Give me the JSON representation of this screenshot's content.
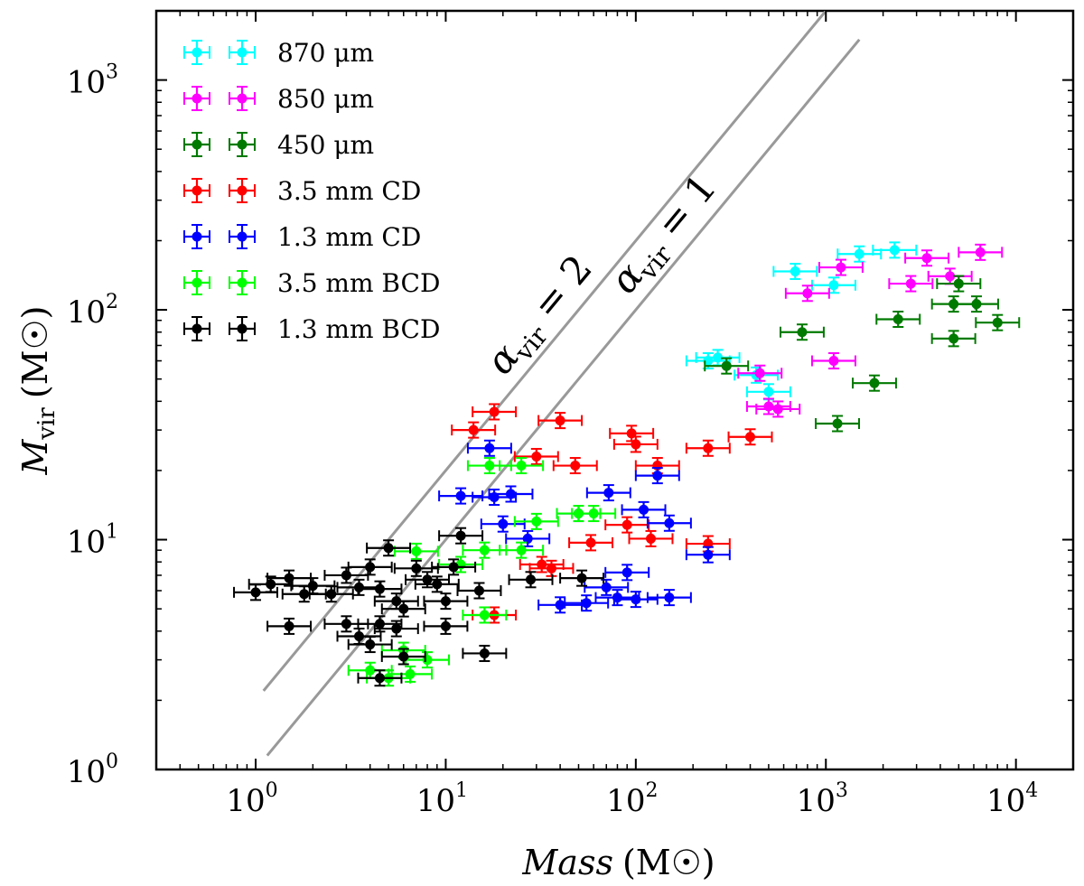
{
  "chart_data": {
    "type": "scatter",
    "log_x": true,
    "log_y": true,
    "xlim": [
      0.3,
      20000
    ],
    "ylim": [
      1,
      2000
    ],
    "xlabel": {
      "italic": "Mass",
      "unit": "(M☉)"
    },
    "ylabel": {
      "italic": "M",
      "sub": "vir",
      "unit": "(M☉)"
    },
    "x_ticks": [
      {
        "base": "10",
        "exp": "0"
      },
      {
        "base": "10",
        "exp": "1"
      },
      {
        "base": "10",
        "exp": "2"
      },
      {
        "base": "10",
        "exp": "3"
      },
      {
        "base": "10",
        "exp": "4"
      }
    ],
    "y_ticks": [
      {
        "base": "10",
        "exp": "0"
      },
      {
        "base": "10",
        "exp": "1"
      },
      {
        "base": "10",
        "exp": "2"
      },
      {
        "base": "10",
        "exp": "3"
      }
    ],
    "reference_lines": [
      {
        "name": "alpha-vir-2",
        "label": "α",
        "sub": "vir",
        "rhs": " = 2",
        "alpha": 2,
        "x": [
          1.1,
          1000
        ],
        "color": "#999999"
      },
      {
        "name": "alpha-vir-1",
        "label": "α",
        "sub": "vir",
        "rhs": " = 1",
        "alpha": 1,
        "x": [
          1.15,
          1500
        ],
        "color": "#999999"
      }
    ],
    "legend_position": "top-left",
    "series": [
      {
        "name": "870 μm",
        "color": "#00ffff",
        "points": [
          [
            690,
            147
          ],
          [
            1100,
            128
          ],
          [
            1500,
            175
          ],
          [
            2300,
            182
          ],
          [
            240,
            60
          ],
          [
            270,
            62
          ],
          [
            500,
            44
          ],
          [
            430,
            52
          ]
        ]
      },
      {
        "name": "850 μm",
        "color": "#ff00ff",
        "points": [
          [
            800,
            118
          ],
          [
            1200,
            153
          ],
          [
            2800,
            130
          ],
          [
            3400,
            168
          ],
          [
            4500,
            140
          ],
          [
            6500,
            178
          ],
          [
            1100,
            60
          ],
          [
            450,
            53
          ],
          [
            500,
            38
          ],
          [
            560,
            37
          ]
        ]
      },
      {
        "name": "450 μm",
        "color": "#007a00",
        "points": [
          [
            750,
            80
          ],
          [
            2400,
            91
          ],
          [
            4700,
            106
          ],
          [
            6200,
            106
          ],
          [
            4700,
            75
          ],
          [
            1800,
            48
          ],
          [
            1150,
            32
          ],
          [
            8000,
            88
          ],
          [
            5000,
            130
          ],
          [
            300,
            57
          ]
        ]
      },
      {
        "name": "3.5 mm CD",
        "color": "#ff0000",
        "points": [
          [
            14,
            30
          ],
          [
            18,
            36
          ],
          [
            40,
            33
          ],
          [
            30,
            23
          ],
          [
            48,
            21
          ],
          [
            95,
            29
          ],
          [
            100,
            26
          ],
          [
            130,
            21
          ],
          [
            240,
            25
          ],
          [
            400,
            28
          ],
          [
            58,
            9.7
          ],
          [
            90,
            11.6
          ],
          [
            120,
            10.1
          ],
          [
            240,
            9.6
          ],
          [
            32,
            7.8
          ],
          [
            36,
            7.5
          ],
          [
            18,
            4.7
          ]
        ]
      },
      {
        "name": "1.3 mm CD",
        "color": "#0000ff",
        "points": [
          [
            17,
            25
          ],
          [
            12,
            15.5
          ],
          [
            18,
            15.3
          ],
          [
            22,
            15.8
          ],
          [
            20,
            11.7
          ],
          [
            27,
            10.1
          ],
          [
            50,
            13
          ],
          [
            72,
            16
          ],
          [
            110,
            13.5
          ],
          [
            130,
            19
          ],
          [
            150,
            11.8
          ],
          [
            40,
            5.2
          ],
          [
            55,
            5.3
          ],
          [
            80,
            5.6
          ],
          [
            100,
            5.5
          ],
          [
            90,
            7.2
          ],
          [
            150,
            5.6
          ],
          [
            240,
            8.6
          ],
          [
            70,
            6.2
          ]
        ]
      },
      {
        "name": "3.5 mm BCD",
        "color": "#00ff00",
        "points": [
          [
            17,
            21
          ],
          [
            25,
            21
          ],
          [
            50,
            13
          ],
          [
            60,
            13
          ],
          [
            30,
            12
          ],
          [
            16,
            9
          ],
          [
            25,
            9
          ],
          [
            7,
            8.9
          ],
          [
            12,
            7.8
          ],
          [
            16,
            4.7
          ],
          [
            6,
            3.3
          ],
          [
            8,
            3
          ],
          [
            4,
            2.7
          ],
          [
            5,
            2.5
          ],
          [
            6.5,
            2.6
          ]
        ]
      },
      {
        "name": "1.3 mm BCD",
        "color": "#000000",
        "points": [
          [
            1,
            5.9
          ],
          [
            1.2,
            6.4
          ],
          [
            1.5,
            6.8
          ],
          [
            2,
            6.3
          ],
          [
            2.5,
            5.8
          ],
          [
            3,
            7
          ],
          [
            3.5,
            6.2
          ],
          [
            4,
            7.6
          ],
          [
            4.5,
            6.1
          ],
          [
            5,
            9.2
          ],
          [
            5.5,
            5.4
          ],
          [
            6,
            5
          ],
          [
            7,
            7.5
          ],
          [
            8,
            6.7
          ],
          [
            9,
            6.4
          ],
          [
            10,
            5.4
          ],
          [
            12,
            10.4
          ],
          [
            28,
            6.7
          ],
          [
            52,
            6.8
          ],
          [
            1.8,
            5.8
          ],
          [
            1.5,
            4.2
          ],
          [
            3,
            4.3
          ],
          [
            3.5,
            3.8
          ],
          [
            4,
            3.5
          ],
          [
            4.5,
            4.3
          ],
          [
            5.5,
            4.1
          ],
          [
            6,
            3.1
          ],
          [
            10,
            4.2
          ],
          [
            16,
            3.2
          ],
          [
            4.5,
            2.5
          ],
          [
            11,
            7.6
          ],
          [
            15,
            6
          ]
        ]
      }
    ]
  }
}
